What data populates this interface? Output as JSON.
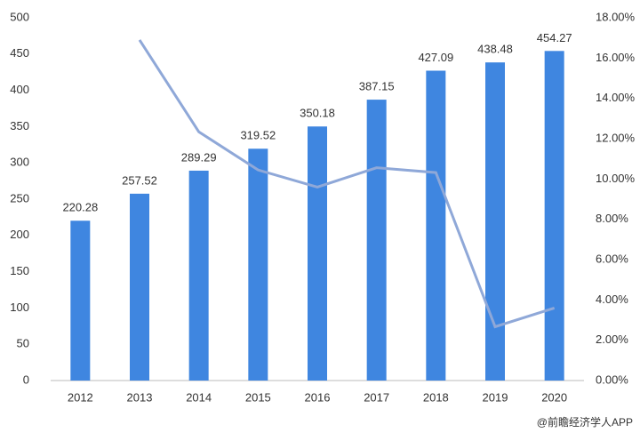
{
  "chart_data": {
    "type": "bar_line",
    "categories": [
      "2012",
      "2013",
      "2014",
      "2015",
      "2016",
      "2017",
      "2018",
      "2019",
      "2020"
    ],
    "series": [
      {
        "type": "bar",
        "color": "#3f86e0",
        "values": [
          220.28,
          257.52,
          289.29,
          319.52,
          350.18,
          387.15,
          427.09,
          438.48,
          454.27
        ]
      },
      {
        "type": "line",
        "axis": "y2",
        "color": "#8fa8d8",
        "values": [
          null,
          16.9,
          12.34,
          10.45,
          9.6,
          10.56,
          10.32,
          2.67,
          3.6
        ]
      }
    ],
    "ylim": [
      0,
      500
    ],
    "yticks": [
      0,
      50,
      100,
      150,
      200,
      250,
      300,
      350,
      400,
      450,
      500
    ],
    "y2lim": [
      0,
      18
    ],
    "y2ticks": [
      {
        "value": 0,
        "label": "0.00%"
      },
      {
        "value": 2,
        "label": "2.00%"
      },
      {
        "value": 4,
        "label": "4.00%"
      },
      {
        "value": 6,
        "label": "6.00%"
      },
      {
        "value": 8,
        "label": "8.00%"
      },
      {
        "value": 10,
        "label": "10.00%"
      },
      {
        "value": 12,
        "label": "12.00%"
      },
      {
        "value": 14,
        "label": "14.00%"
      },
      {
        "value": 16,
        "label": "16.00%"
      },
      {
        "value": 18,
        "label": "18.00%"
      }
    ],
    "grid": false,
    "source": "@前瞻经济学人APP"
  }
}
